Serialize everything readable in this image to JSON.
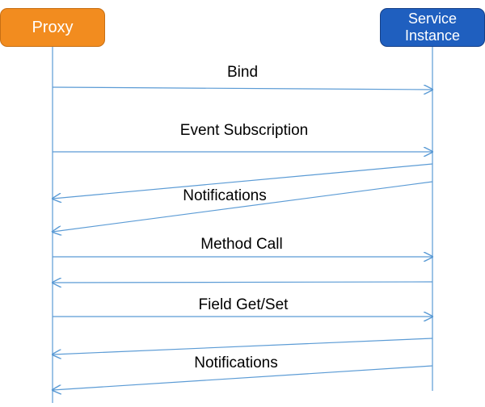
{
  "participants": {
    "proxy": {
      "label": "Proxy"
    },
    "service": {
      "label": "Service\nInstance"
    }
  },
  "messages": [
    {
      "label": "Bind"
    },
    {
      "label": "Event Subscription"
    },
    {
      "label": "Notifications"
    },
    {
      "label": "Method Call"
    },
    {
      "label": "Field Get/Set"
    },
    {
      "label": "Notifications"
    }
  ],
  "colors": {
    "proxy": "#f28c1f",
    "service": "#1f5fbf",
    "lines": "#5b9bd5",
    "text": "#000000"
  }
}
